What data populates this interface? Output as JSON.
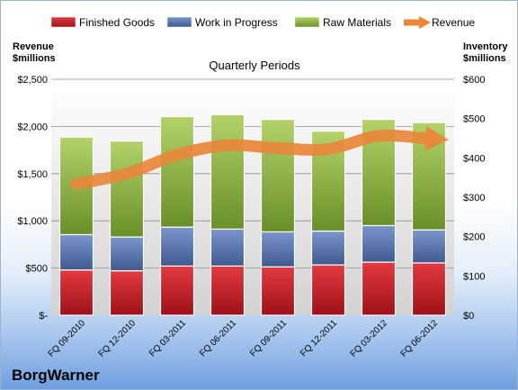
{
  "chart_data": {
    "type": "bar",
    "stacked": true,
    "title": "Quarterly Periods",
    "categories": [
      "FQ 09-2010",
      "FQ 12-2010",
      "FQ 03-2011",
      "FQ 06-2011",
      "FQ 09-2011",
      "FQ 12-2011",
      "FQ 03-2012",
      "FQ 06-2012"
    ],
    "series": [
      {
        "name": "Finished Goods",
        "axis": "right",
        "color": "#c0232b",
        "values": [
          115,
          113,
          125,
          125,
          123,
          128,
          135,
          133
        ]
      },
      {
        "name": "Work in Progress",
        "axis": "right",
        "color": "#4f6fa8",
        "values": [
          90,
          86,
          99,
          94,
          89,
          86,
          93,
          84
        ]
      },
      {
        "name": "Raw Materials",
        "axis": "right",
        "color": "#7ea33b",
        "values": [
          248,
          244,
          281,
          291,
          286,
          254,
          270,
          273
        ]
      },
      {
        "name": "Revenue",
        "type": "line",
        "axis": "left",
        "color": "#e8873a",
        "values": [
          1390,
          1500,
          1700,
          1800,
          1770,
          1760,
          1900,
          1870
        ]
      }
    ],
    "yleft": {
      "label": [
        "Revenue",
        "$millions"
      ],
      "lim": [
        0,
        2500
      ],
      "ticks": [
        "$-",
        "$500",
        "$1,000",
        "$1,500",
        "$2,000",
        "$2,500"
      ]
    },
    "yright": {
      "label": [
        "Inventory",
        "$millions"
      ],
      "lim": [
        0,
        600
      ],
      "ticks": [
        "$0",
        "$100",
        "$200",
        "$300",
        "$400",
        "$500",
        "$600"
      ]
    },
    "grid": true,
    "legend": "top"
  },
  "company": "BorgWarner"
}
